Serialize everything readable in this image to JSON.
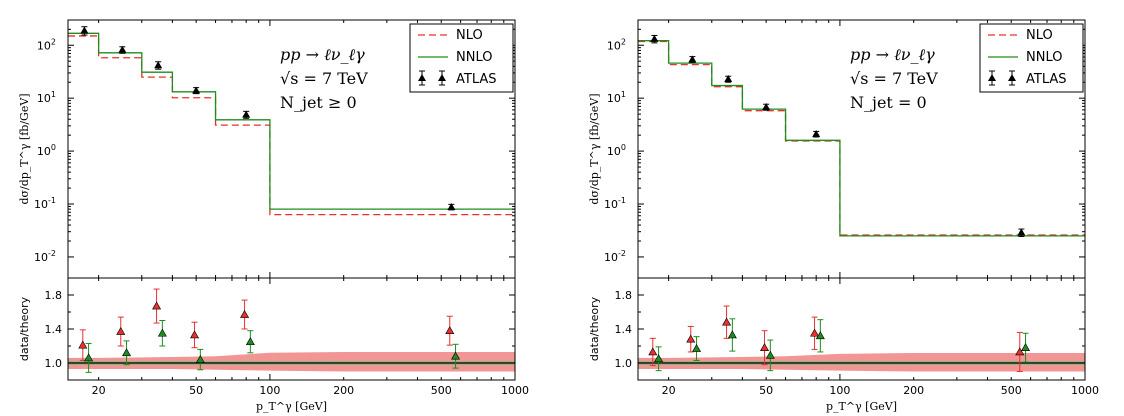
{
  "colors": {
    "nlo": "#e8302f",
    "nnlo": "#1e8c1e",
    "atlas": "#000000",
    "nlo_band": "#f08a8a",
    "nnlo_band": "#7ab87a"
  },
  "chart_data": [
    {
      "type": "line",
      "process_line": "pp → ℓν_ℓγ",
      "energy_line": "√s = 7 TeV",
      "jet_line": "N_jet ≥ 0",
      "legend": [
        "NLO",
        "NNLO",
        "ATLAS"
      ],
      "legend_position": "top-right",
      "ylabel": "dσ/dp_T^γ [fb/GeV]",
      "xlabel": "p_T^γ [GeV]",
      "ratio_ylabel": "data/theory",
      "xscale": "log",
      "yscale": "log",
      "xlim": [
        15,
        1000
      ],
      "ylim": [
        0.004,
        300
      ],
      "ratio_ylim": [
        0.8,
        2.0
      ],
      "x_ticks": [
        "20",
        "50",
        "100",
        "200",
        "500",
        "1000"
      ],
      "x_tick_values": [
        20,
        50,
        100,
        200,
        500,
        1000
      ],
      "y_ticks": [
        "10^2",
        "10^1",
        "10^0",
        "10^-1",
        "10^-2"
      ],
      "y_tick_values": [
        100,
        10,
        1,
        0.1,
        0.01
      ],
      "ratio_ticks": [
        "1.8",
        "1.4",
        "1.0"
      ],
      "ratio_tick_values": [
        1.8,
        1.4,
        1.0
      ],
      "bin_edges": [
        15,
        20,
        30,
        40,
        60,
        100,
        1000
      ],
      "series": [
        {
          "name": "NLO",
          "values": [
            150,
            58,
            25,
            10.2,
            3.1,
            0.063
          ]
        },
        {
          "name": "NNLO",
          "values": [
            168,
            72,
            31,
            13.2,
            3.9,
            0.08
          ]
        }
      ],
      "data_points": {
        "name": "ATLAS",
        "x": [
          17.5,
          25,
          35,
          50,
          80,
          550
        ],
        "y": [
          190,
          82,
          42,
          14,
          4.9,
          0.088
        ],
        "yerr": [
          0.18,
          0.14,
          0.16,
          0.13,
          0.15,
          0.12
        ]
      },
      "ratio_nlo": {
        "x": [
          17.5,
          25,
          35,
          50,
          80,
          550
        ],
        "y": [
          1.21,
          1.37,
          1.67,
          1.33,
          1.57,
          1.38
        ],
        "err": [
          0.18,
          0.17,
          0.2,
          0.15,
          0.17,
          0.17
        ]
      },
      "ratio_nnlo": {
        "x": [
          17.5,
          25,
          35,
          50,
          80,
          550
        ],
        "y": [
          1.06,
          1.12,
          1.35,
          1.04,
          1.25,
          1.08
        ],
        "err": [
          0.17,
          0.14,
          0.15,
          0.12,
          0.13,
          0.14
        ]
      }
    },
    {
      "type": "line",
      "process_line": "pp → ℓν_ℓγ",
      "energy_line": "√s = 7 TeV",
      "jet_line": "N_jet = 0",
      "legend": [
        "NLO",
        "NNLO",
        "ATLAS"
      ],
      "legend_position": "top-right",
      "ylabel": "dσ/dp_T^γ [fb/GeV]",
      "xlabel": "p_T^γ [GeV]",
      "ratio_ylabel": "data/theory",
      "xscale": "log",
      "yscale": "log",
      "xlim": [
        15,
        1000
      ],
      "ylim": [
        0.004,
        300
      ],
      "ratio_ylim": [
        0.8,
        2.0
      ],
      "x_ticks": [
        "20",
        "50",
        "100",
        "200",
        "500",
        "1000"
      ],
      "x_tick_values": [
        20,
        50,
        100,
        200,
        500,
        1000
      ],
      "y_ticks": [
        "10^2",
        "10^1",
        "10^0",
        "10^-1",
        "10^-2"
      ],
      "y_tick_values": [
        100,
        10,
        1,
        0.1,
        0.01
      ],
      "ratio_ticks": [
        "1.8",
        "1.4",
        "1.0"
      ],
      "ratio_tick_values": [
        1.8,
        1.4,
        1.0
      ],
      "bin_edges": [
        15,
        20,
        30,
        40,
        60,
        100,
        1000
      ],
      "series": [
        {
          "name": "NLO",
          "values": [
            118,
            43,
            16.5,
            5.8,
            1.55,
            0.026
          ]
        },
        {
          "name": "NNLO",
          "values": [
            122,
            46,
            17.3,
            6.2,
            1.6,
            0.025
          ]
        }
      ],
      "data_points": {
        "name": "ATLAS",
        "x": [
          17.5,
          25,
          35,
          50,
          80,
          550
        ],
        "y": [
          132,
          54,
          23,
          6.8,
          2.1,
          0.029
        ],
        "yerr": [
          0.16,
          0.13,
          0.13,
          0.13,
          0.12,
          0.16
        ]
      },
      "ratio_nlo": {
        "x": [
          17.5,
          25,
          35,
          50,
          80,
          550
        ],
        "y": [
          1.13,
          1.28,
          1.48,
          1.18,
          1.35,
          1.13
        ],
        "err": [
          0.16,
          0.15,
          0.19,
          0.2,
          0.19,
          0.23
        ]
      },
      "ratio_nnlo": {
        "x": [
          17.5,
          25,
          35,
          50,
          80,
          550
        ],
        "y": [
          1.05,
          1.17,
          1.33,
          1.09,
          1.32,
          1.18
        ],
        "err": [
          0.14,
          0.14,
          0.19,
          0.18,
          0.19,
          0.17
        ]
      }
    }
  ]
}
